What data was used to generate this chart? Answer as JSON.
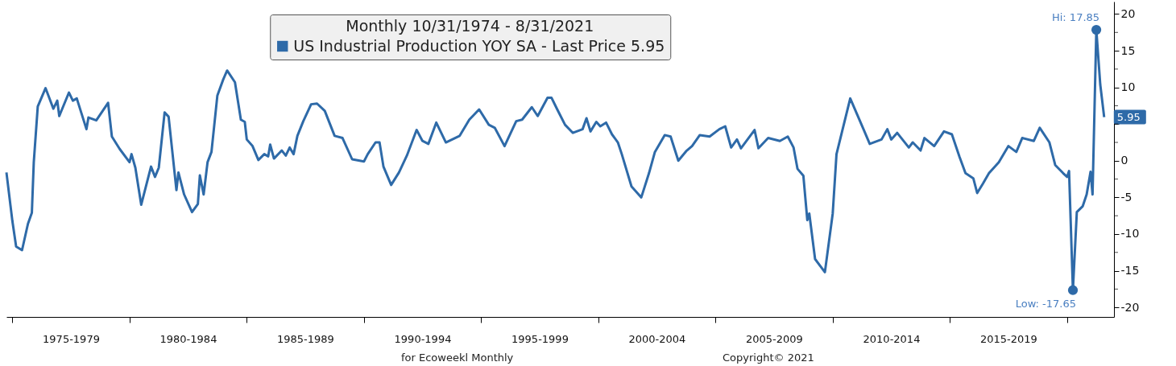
{
  "chart_data": {
    "type": "line",
    "legend_title": "Monthly 10/31/1974 - 8/31/2021",
    "legend": "top",
    "grid": false,
    "marker": "none",
    "line_style": "solid",
    "x": [
      "1974-10",
      "1975-01",
      "1975-03",
      "1975-06",
      "1975-09",
      "1975-11",
      "1975-12",
      "1976-02",
      "1976-06",
      "1976-08",
      "1976-10",
      "1976-12",
      "1977-01",
      "1977-06",
      "1977-08",
      "1977-10",
      "1978-03",
      "1978-04",
      "1978-08",
      "1979-02",
      "1979-04",
      "1979-08",
      "1980-01",
      "1980-02",
      "1980-04",
      "1980-07",
      "1980-12",
      "1981-02",
      "1981-04",
      "1981-07",
      "1981-09",
      "1982-01",
      "1982-02",
      "1982-05",
      "1982-09",
      "1982-12",
      "1983-01",
      "1983-03",
      "1983-05",
      "1983-07",
      "1983-10",
      "1984-01",
      "1984-03",
      "1984-07",
      "1984-10",
      "1984-12",
      "1985-01",
      "1985-04",
      "1985-07",
      "1985-10",
      "1985-12",
      "1986-01",
      "1986-03",
      "1986-07",
      "1986-09",
      "1986-11",
      "1987-01",
      "1987-03",
      "1987-06",
      "1987-10",
      "1988-01",
      "1988-05",
      "1988-10",
      "1989-02",
      "1989-07",
      "1990-01",
      "1990-03",
      "1990-07",
      "1990-09",
      "1990-11",
      "1991-03",
      "1991-07",
      "1991-11",
      "1992-04",
      "1992-07",
      "1992-10",
      "1993-02",
      "1993-07",
      "1994-02",
      "1994-07",
      "1994-12",
      "1995-05",
      "1995-08",
      "1996-01",
      "1996-07",
      "1996-10",
      "1997-03",
      "1997-06",
      "1997-11",
      "1998-01",
      "1998-04",
      "1998-08",
      "1998-12",
      "1999-05",
      "1999-07",
      "1999-09",
      "1999-12",
      "2000-02",
      "2000-05",
      "2000-08",
      "2000-11",
      "2001-01",
      "2001-06",
      "2001-11",
      "2002-03",
      "2002-06",
      "2002-11",
      "2003-02",
      "2003-06",
      "2003-10",
      "2004-01",
      "2004-05",
      "2004-10",
      "2005-03",
      "2005-06",
      "2005-09",
      "2005-12",
      "2006-02",
      "2006-09",
      "2006-11",
      "2007-04",
      "2007-10",
      "2008-02",
      "2008-05",
      "2008-07",
      "2008-10",
      "2008-12",
      "2009-01",
      "2009-04",
      "2009-09",
      "2010-01",
      "2010-03",
      "2010-10",
      "2011-02",
      "2011-05",
      "2011-08",
      "2012-02",
      "2012-05",
      "2012-07",
      "2012-10",
      "2013-04",
      "2013-06",
      "2013-10",
      "2013-12",
      "2014-05",
      "2014-10",
      "2015-02",
      "2015-06",
      "2015-09",
      "2016-01",
      "2016-03",
      "2016-06",
      "2016-09",
      "2017-02",
      "2017-07",
      "2017-11",
      "2018-02",
      "2018-08",
      "2018-11",
      "2019-04",
      "2019-07",
      "2019-11",
      "2020-01",
      "2020-02",
      "2020-04",
      "2020-06",
      "2020-09",
      "2020-11",
      "2021-01",
      "2021-02",
      "2021-04",
      "2021-06",
      "2021-08"
    ],
    "series": [
      {
        "name": "US Industrial Production YOY SA - Last Price 5.95",
        "color": "#2e6aa8",
        "values": [
          -1.6,
          -8.2,
          -11.7,
          -12.2,
          -8.6,
          -7.1,
          -0.2,
          7.4,
          9.9,
          8.5,
          7.1,
          8.2,
          6.1,
          9.3,
          8.2,
          8.5,
          4.3,
          5.9,
          5.5,
          7.9,
          3.3,
          1.6,
          -0.2,
          0.9,
          -0.95,
          -6.0,
          -0.8,
          -2.2,
          -0.95,
          6.6,
          6.0,
          -4.0,
          -1.6,
          -4.6,
          -7.0,
          -5.9,
          -2.0,
          -4.6,
          -0.2,
          1.2,
          8.9,
          11.1,
          12.3,
          10.7,
          5.6,
          5.3,
          2.9,
          2.0,
          0.1,
          0.9,
          0.6,
          2.2,
          0.3,
          1.4,
          0.7,
          1.8,
          0.9,
          3.4,
          5.4,
          7.7,
          7.8,
          6.8,
          3.4,
          3.1,
          0.2,
          -0.1,
          0.9,
          2.5,
          2.5,
          -0.8,
          -3.3,
          -1.6,
          0.7,
          4.2,
          2.7,
          2.3,
          5.2,
          2.5,
          3.4,
          5.6,
          7.0,
          4.9,
          4.5,
          2.0,
          5.4,
          5.6,
          7.3,
          6.1,
          8.6,
          8.6,
          7.0,
          4.9,
          3.8,
          4.3,
          5.8,
          4.0,
          5.3,
          4.7,
          5.2,
          3.6,
          2.5,
          0.9,
          -3.5,
          -5.0,
          -1.7,
          1.2,
          3.5,
          3.3,
          0.0,
          1.3,
          2.0,
          3.5,
          3.3,
          4.3,
          4.7,
          1.8,
          2.9,
          1.7,
          4.2,
          1.7,
          3.1,
          2.7,
          3.3,
          1.8,
          -1.1,
          -2.05,
          -8.1,
          -7.2,
          -13.4,
          -15.2,
          -7.2,
          0.9,
          8.5,
          6.0,
          4.2,
          2.3,
          2.9,
          4.3,
          2.9,
          3.8,
          1.8,
          2.5,
          1.4,
          3.1,
          2.0,
          4.0,
          3.6,
          0.5,
          -1.7,
          -2.4,
          -4.4,
          -3.1,
          -1.7,
          -0.2,
          2.0,
          1.2,
          3.1,
          2.7,
          4.5,
          2.5,
          -0.6,
          -1.7,
          -2.2,
          -1.4,
          -17.65,
          -7.0,
          -6.2,
          -4.6,
          -1.5,
          -4.6,
          17.85,
          10.4,
          5.95
        ],
        "value_labels": [
          null,
          null,
          null,
          null,
          null,
          null,
          null,
          null,
          null,
          null,
          null,
          null,
          null,
          null,
          null,
          null,
          null,
          null,
          null,
          null,
          null,
          null,
          null,
          null,
          null,
          null,
          null,
          null,
          null,
          null,
          null,
          null,
          null,
          null,
          null,
          null,
          null,
          null,
          null,
          null,
          null,
          null,
          null,
          null,
          null,
          null,
          null,
          null,
          null,
          null,
          null,
          null,
          null,
          null,
          null,
          null,
          null,
          null,
          null,
          null,
          null,
          null,
          null,
          null,
          null,
          null,
          null,
          null,
          null,
          null,
          null,
          null,
          null,
          null,
          null,
          null,
          null,
          null,
          null,
          null,
          null,
          null,
          null,
          null,
          null,
          null,
          null,
          null,
          null,
          null,
          null,
          null,
          null,
          null,
          null,
          null,
          null,
          null,
          null,
          null,
          null,
          null,
          null,
          null,
          null,
          null,
          null,
          null,
          null,
          null,
          null,
          null,
          null,
          null,
          null,
          null,
          null,
          null,
          null,
          null,
          null,
          null,
          null,
          null,
          null,
          null,
          null,
          null,
          null,
          null,
          null,
          null,
          null,
          null,
          null,
          null,
          null,
          null,
          null,
          null,
          null,
          null,
          null,
          null,
          null,
          null,
          null,
          null,
          null,
          null,
          null,
          null,
          null,
          null,
          null,
          null,
          null,
          null,
          null,
          null,
          null,
          null,
          null,
          null,
          null,
          null,
          null,
          null,
          null,
          null,
          null,
          null,
          "5.95"
        ]
      }
    ],
    "xlim": [
      "1974-10",
      "2022-01"
    ],
    "xticks": [
      {
        "value": "1975-01",
        "label": null
      },
      {
        "value": "1977-07",
        "label": "1975-1979"
      },
      {
        "value": "1980-01",
        "label": null
      },
      {
        "value": "1982-07",
        "label": "1980-1984"
      },
      {
        "value": "1985-01",
        "label": null
      },
      {
        "value": "1987-07",
        "label": "1985-1989"
      },
      {
        "value": "1990-01",
        "label": null
      },
      {
        "value": "1992-07",
        "label": "1990-1994"
      },
      {
        "value": "1995-01",
        "label": null
      },
      {
        "value": "1997-07",
        "label": "1995-1999"
      },
      {
        "value": "2000-01",
        "label": null
      },
      {
        "value": "2002-07",
        "label": "2000-2004"
      },
      {
        "value": "2005-01",
        "label": null
      },
      {
        "value": "2007-07",
        "label": "2005-2009"
      },
      {
        "value": "2010-01",
        "label": null
      },
      {
        "value": "2012-07",
        "label": "2010-2014"
      },
      {
        "value": "2015-01",
        "label": null
      },
      {
        "value": "2017-07",
        "label": "2015-2019"
      },
      {
        "value": "2020-01",
        "label": null
      }
    ],
    "ylim": [
      -21.3,
      21.7
    ],
    "yticks": [
      -20,
      {
        "value": -17.5,
        "label": null
      },
      -15,
      {
        "value": -12.5,
        "label": null
      },
      -10,
      {
        "value": -7.5,
        "label": null
      },
      -5,
      {
        "value": -2.5,
        "label": null
      },
      0,
      {
        "value": 2.5,
        "label": null
      },
      {
        "value": 5,
        "label": null
      },
      {
        "value": 7.5,
        "label": null
      },
      10,
      {
        "value": 12.5,
        "label": null
      },
      15,
      {
        "value": 17.5,
        "label": null
      },
      20
    ],
    "annotations": [
      {
        "text": "Hi: 17.85",
        "x": "2021-04",
        "y": 17.85
      },
      {
        "text": "Low: -17.65",
        "x": "2020-04",
        "y": -17.65
      },
      "for Ecoweekl Monthly",
      "Copyright© 2021"
    ]
  }
}
